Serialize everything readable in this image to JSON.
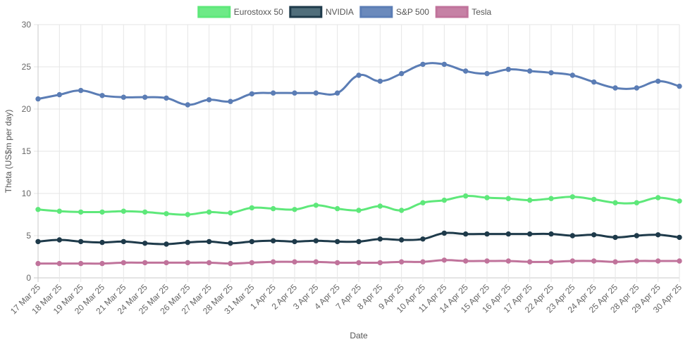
{
  "chart_data": {
    "type": "line",
    "xlabel": "Date",
    "ylabel": "Theta (US$m per day)",
    "ylim": [
      0,
      30
    ],
    "yticks": [
      0,
      5,
      10,
      15,
      20,
      25,
      30
    ],
    "grid": true,
    "legend_position": "top",
    "categories": [
      "17 Mar 25",
      "18 Mar 25",
      "19 Mar 25",
      "20 Mar 25",
      "21 Mar 25",
      "24 Mar 25",
      "25 Mar 25",
      "26 Mar 25",
      "27 Mar 25",
      "28 Mar 25",
      "31 Mar 25",
      "1 Apr 25",
      "2 Apr 25",
      "3 Apr 25",
      "4 Apr 25",
      "7 Apr 25",
      "8 Apr 25",
      "9 Apr 25",
      "10 Apr 25",
      "11 Apr 25",
      "14 Apr 25",
      "15 Apr 25",
      "16 Apr 25",
      "17 Apr 25",
      "22 Apr 25",
      "23 Apr 25",
      "24 Apr 25",
      "25 Apr 25",
      "28 Apr 25",
      "29 Apr 25",
      "30 Apr 25"
    ],
    "series": [
      {
        "name": "Eurostoxx 50",
        "color": "#5ee87a",
        "fill": "#5ee87a",
        "values": [
          8.1,
          7.9,
          7.8,
          7.8,
          7.9,
          7.8,
          7.6,
          7.5,
          7.8,
          7.7,
          8.3,
          8.2,
          8.1,
          8.6,
          8.2,
          8.0,
          8.5,
          8.0,
          8.9,
          9.2,
          9.7,
          9.5,
          9.4,
          9.2,
          9.4,
          9.6,
          9.3,
          8.9,
          8.9,
          9.5,
          9.1
        ]
      },
      {
        "name": "NVIDIA",
        "color": "#1e3a4a",
        "fill": "#3d5e6d",
        "values": [
          4.3,
          4.5,
          4.3,
          4.2,
          4.3,
          4.1,
          4.0,
          4.2,
          4.3,
          4.1,
          4.3,
          4.4,
          4.3,
          4.4,
          4.3,
          4.3,
          4.6,
          4.5,
          4.6,
          5.3,
          5.2,
          5.2,
          5.2,
          5.2,
          5.2,
          5.0,
          5.1,
          4.8,
          5.0,
          5.1,
          4.8
        ]
      },
      {
        "name": "S&P 500",
        "color": "#5b7db5",
        "fill": "#5b7db5",
        "values": [
          21.2,
          21.7,
          22.2,
          21.6,
          21.4,
          21.4,
          21.3,
          20.5,
          21.1,
          20.9,
          21.8,
          21.9,
          21.9,
          21.9,
          21.9,
          24.0,
          23.3,
          24.2,
          25.3,
          25.3,
          24.5,
          24.2,
          24.7,
          24.5,
          24.3,
          24.0,
          23.2,
          22.5,
          22.5,
          23.3,
          22.7
        ]
      },
      {
        "name": "Tesla",
        "color": "#c0739b",
        "fill": "#c0739b",
        "values": [
          1.7,
          1.7,
          1.7,
          1.7,
          1.8,
          1.8,
          1.8,
          1.8,
          1.8,
          1.7,
          1.8,
          1.9,
          1.9,
          1.9,
          1.8,
          1.8,
          1.8,
          1.9,
          1.9,
          2.1,
          2.0,
          2.0,
          2.0,
          1.9,
          1.9,
          2.0,
          2.0,
          1.9,
          2.0,
          2.0,
          2.0
        ]
      }
    ]
  }
}
